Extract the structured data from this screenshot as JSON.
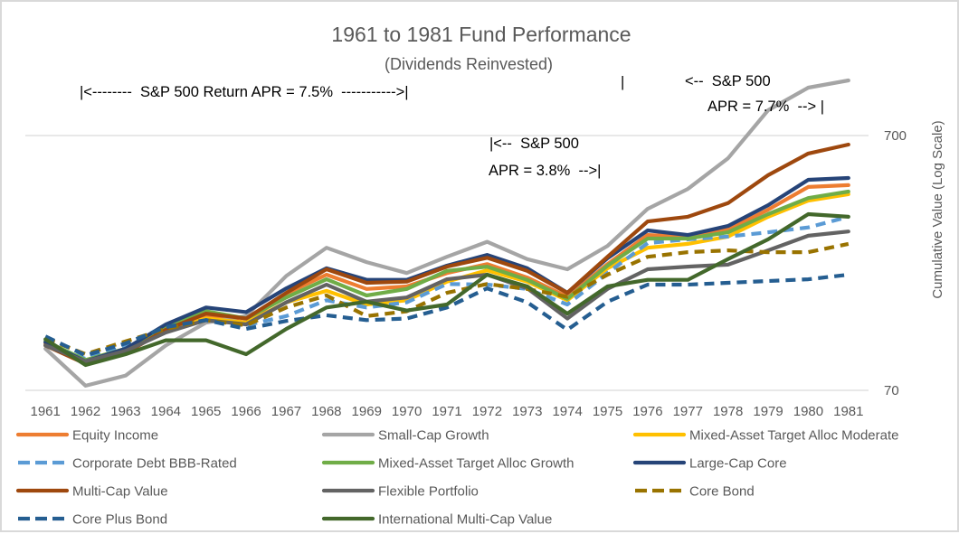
{
  "chart_data": {
    "type": "line",
    "title": "1961 to 1981 Fund Performance",
    "subtitle": "(Dividends Reinvested)",
    "xlabel": "",
    "ylabel": "Cumulative Value (Log Scale)",
    "y_scale": "log",
    "ylim": [
      70,
      1400
    ],
    "y_ticks": [
      {
        "value": 700,
        "label": "700"
      },
      {
        "value": 70,
        "label": "70"
      }
    ],
    "y_axis_position": "right",
    "grid": true,
    "legend_position": "bottom",
    "categories": [
      "1961",
      "1962",
      "1963",
      "1964",
      "1965",
      "1966",
      "1967",
      "1968",
      "1969",
      "1970",
      "1971",
      "1972",
      "1973",
      "1974",
      "1975",
      "1976",
      "1977",
      "1978",
      "1979",
      "1980",
      "1981"
    ],
    "annotations": [
      {
        "id": "period1",
        "lines": [
          "|<--------  S&P 500 Return APR = 7.5%  ----------->|"
        ]
      },
      {
        "id": "period2",
        "lines": [
          "|<--  S&P 500",
          "APR = 3.8%  -->|"
        ]
      },
      {
        "id": "period3-start",
        "lines": [
          "|"
        ]
      },
      {
        "id": "period3",
        "lines": [
          "<--  S&P 500",
          "APR = 7.7%  --> |"
        ]
      }
    ],
    "series": [
      {
        "name": "Equity Income",
        "color": "#ED7D31",
        "style": "solid",
        "values": [
          107,
          91,
          101,
          122,
          137,
          129,
          168,
          199,
          175,
          179,
          202,
          219,
          194,
          163,
          219,
          285,
          281,
          299,
          358,
          440,
          447
        ]
      },
      {
        "name": "Small-Cap Growth",
        "color": "#A5A5A5",
        "style": "solid",
        "values": [
          102,
          73,
          80,
          105,
          129,
          137,
          197,
          254,
          223,
          202,
          234,
          268,
          229,
          209,
          258,
          361,
          432,
          570,
          880,
          1079,
          1152
        ]
      },
      {
        "name": "Mixed-Asset Target Alloc Moderate",
        "color": "#FFC000",
        "style": "solid",
        "values": [
          105,
          92,
          102,
          122,
          134,
          129,
          155,
          172,
          152,
          158,
          187,
          207,
          187,
          158,
          211,
          254,
          263,
          281,
          336,
          389,
          412
        ]
      },
      {
        "name": "Corporate Debt BBB-Rated",
        "color": "#5B9BD5",
        "style": "dashed",
        "values": [
          107,
          93,
          104,
          122,
          132,
          126,
          137,
          158,
          148,
          155,
          183,
          182,
          175,
          152,
          202,
          265,
          274,
          281,
          292,
          305,
          336
        ]
      },
      {
        "name": "Mixed-Asset Target Alloc Growth",
        "color": "#70AD47",
        "style": "solid",
        "values": [
          109,
          92,
          102,
          124,
          143,
          134,
          162,
          191,
          165,
          175,
          206,
          214,
          190,
          160,
          216,
          276,
          276,
          292,
          344,
          398,
          422
        ]
      },
      {
        "name": "Large-Cap Core",
        "color": "#264478",
        "style": "solid",
        "values": [
          108,
          91,
          102,
          127,
          148,
          142,
          176,
          211,
          190,
          190,
          216,
          238,
          211,
          169,
          231,
          297,
          285,
          309,
          373,
          469,
          477
        ]
      },
      {
        "name": "Multi-Cap Value",
        "color": "#9E480E",
        "style": "solid",
        "values": [
          105,
          89,
          98,
          121,
          140,
          134,
          169,
          209,
          185,
          187,
          214,
          232,
          206,
          169,
          234,
          322,
          336,
          380,
          489,
          595,
          645
        ]
      },
      {
        "name": "Flexible Portfolio",
        "color": "#636363",
        "style": "solid",
        "values": [
          105,
          91,
          100,
          118,
          132,
          127,
          155,
          182,
          156,
          162,
          191,
          199,
          176,
          134,
          175,
          209,
          214,
          218,
          248,
          283,
          294
        ]
      },
      {
        "name": "Core Bond",
        "color": "#997300",
        "style": "dashed",
        "values": [
          112,
          97,
          109,
          122,
          132,
          126,
          148,
          165,
          137,
          143,
          169,
          183,
          175,
          163,
          199,
          234,
          244,
          248,
          244,
          244,
          263
        ]
      },
      {
        "name": "Core Plus Bond",
        "color": "#255E91",
        "style": "dashed",
        "values": [
          114,
          96,
          107,
          124,
          132,
          122,
          131,
          138,
          132,
          134,
          148,
          176,
          155,
          121,
          156,
          182,
          182,
          185,
          188,
          191,
          199
        ]
      },
      {
        "name": "International Multi-Cap Value",
        "color": "#43682B",
        "style": "solid",
        "values": [
          111,
          88,
          97,
          110,
          110,
          97,
          122,
          148,
          156,
          144,
          152,
          199,
          179,
          140,
          179,
          190,
          190,
          229,
          274,
          344,
          336
        ]
      }
    ]
  }
}
